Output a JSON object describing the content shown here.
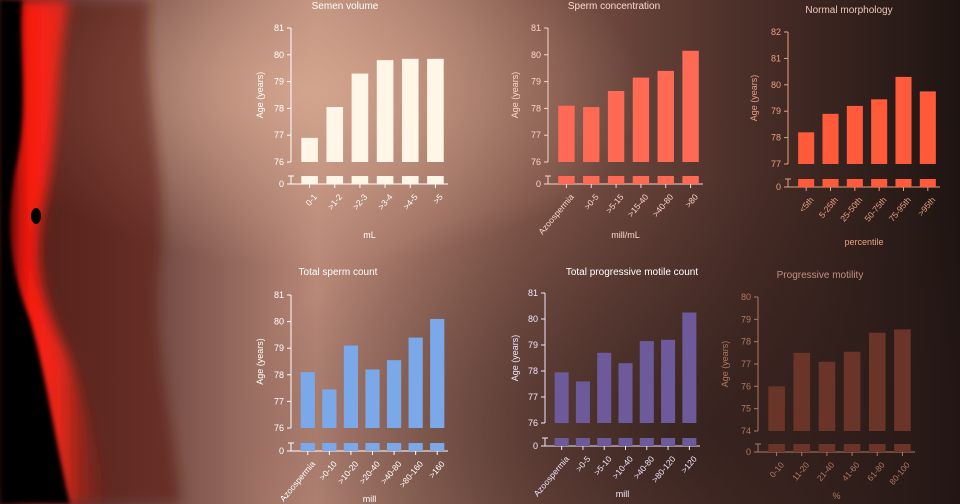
{
  "colors": {
    "background_dark": "#2a1a18",
    "glow_red": "#ff1a10"
  },
  "chart_data": [
    {
      "type": "bar",
      "title": "Semen volume",
      "xlabel": "mL",
      "ylabel": "Age (years)",
      "categories": [
        "0-1",
        ">1-2",
        ">2-3",
        ">3-4",
        ">4-5",
        ">5"
      ],
      "values": [
        76.9,
        78.05,
        79.3,
        79.8,
        79.85,
        79.85
      ],
      "ylim": [
        76,
        81
      ],
      "yticks": [
        "81",
        "80",
        "79",
        "78",
        "77",
        "76",
        "0"
      ],
      "axis_break": true,
      "colors": {
        "bar": "#fff6e8",
        "axis": "#ffffff",
        "title": "#ffffff"
      }
    },
    {
      "type": "bar",
      "title": "Sperm concentration",
      "xlabel": "mill/mL",
      "ylabel": "Age (years)",
      "categories": [
        "Azoospermia",
        ">0-5",
        ">5-15",
        ">15-40",
        ">40-80",
        ">80"
      ],
      "values": [
        78.1,
        78.05,
        78.65,
        79.15,
        79.4,
        80.15
      ],
      "ylim": [
        76,
        81
      ],
      "yticks": [
        "81",
        "80",
        "79",
        "78",
        "77",
        "76",
        "0"
      ],
      "axis_break": true,
      "colors": {
        "bar": "#ff6a55",
        "axis": "#ffd4c8",
        "title": "#ffd8cc"
      }
    },
    {
      "type": "bar",
      "title": "Normal morphology",
      "xlabel": "percentile",
      "ylabel": "Age (years)",
      "categories": [
        "<5th",
        "5-25th",
        "25-50th",
        "50-75th",
        "75-95th",
        ">95th"
      ],
      "values": [
        78.2,
        78.9,
        79.2,
        79.45,
        80.3,
        79.75
      ],
      "ylim": [
        77,
        82
      ],
      "yticks": [
        "82",
        "81",
        "80",
        "79",
        "78",
        "77",
        "0"
      ],
      "axis_break": true,
      "colors": {
        "bar": "#ff5a3a",
        "axis": "#e8a080",
        "title": "#f0c8b8"
      }
    },
    {
      "type": "bar",
      "title": "Total sperm count",
      "xlabel": "mill",
      "ylabel": "Age (years)",
      "categories": [
        "Azoospermia",
        ">0-10",
        ">10-20",
        ">20-40",
        ">40-80",
        ">80-160",
        ">160"
      ],
      "values": [
        78.1,
        77.45,
        79.1,
        78.2,
        78.55,
        79.4,
        80.1
      ],
      "ylim": [
        76,
        81
      ],
      "yticks": [
        "81",
        "80",
        "79",
        "78",
        "77",
        "76",
        "0"
      ],
      "axis_break": true,
      "colors": {
        "bar": "#7aa8e8",
        "axis": "#ffffff",
        "title": "#ffffff"
      }
    },
    {
      "type": "bar",
      "title": "Total progressive motile count",
      "xlabel": "mill",
      "ylabel": "Age (years)",
      "categories": [
        "Azoospermia",
        ">0-5",
        ">5-10",
        ">10-40",
        ">40-80",
        ">80-120",
        ">120"
      ],
      "values": [
        77.95,
        77.6,
        78.7,
        78.3,
        79.15,
        79.2,
        80.25
      ],
      "ylim": [
        76,
        81
      ],
      "yticks": [
        "81",
        "80",
        "79",
        "78",
        "77",
        "76",
        "0"
      ],
      "axis_break": true,
      "colors": {
        "bar": "#6c5a9a",
        "axis": "#f0e6ff",
        "title": "#ffffff"
      }
    },
    {
      "type": "bar",
      "title": "Progressive motility",
      "xlabel": "%",
      "ylabel": "Age (years)",
      "categories": [
        "0-10",
        "11-20",
        "21-40",
        "41-60",
        "61-80",
        "80-100"
      ],
      "values": [
        76.0,
        77.5,
        77.1,
        77.55,
        78.4,
        78.55
      ],
      "ylim": [
        74,
        80
      ],
      "yticks": [
        "80",
        "79",
        "78",
        "77",
        "76",
        "75",
        "74",
        "0"
      ],
      "axis_break": true,
      "colors": {
        "bar": "#6a3428",
        "axis": "#b07860",
        "title": "#c09080"
      }
    }
  ]
}
